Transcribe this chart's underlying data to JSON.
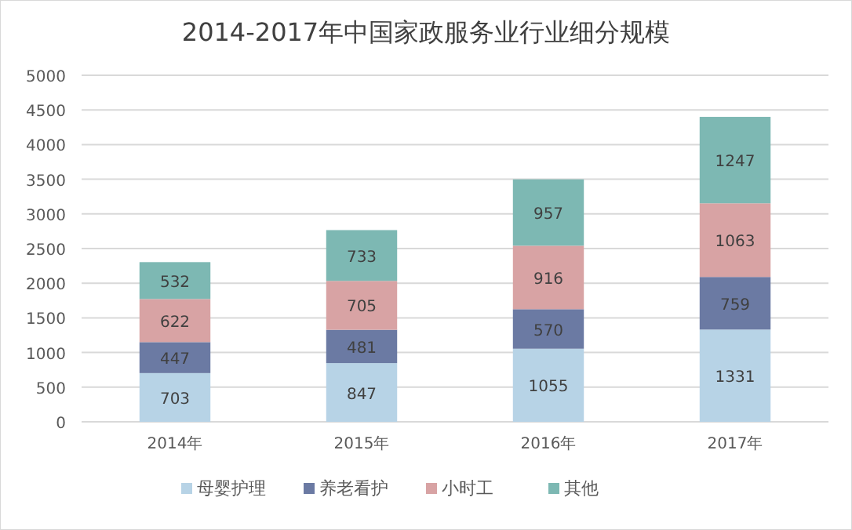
{
  "chart_data": {
    "type": "bar",
    "title": "2014-2017年中国家政服务业行业细分规模",
    "categories": [
      "2014年",
      "2015年",
      "2016年",
      "2017年"
    ],
    "stacked": true,
    "data_labels": true,
    "grid": "y",
    "legend": "bottom",
    "ylim": [
      0,
      5000
    ],
    "yticks": [
      0,
      500,
      1000,
      1500,
      2000,
      2500,
      3000,
      3500,
      4000,
      4500,
      5000
    ],
    "series": [
      {
        "name": "母婴护理",
        "color": "#b7d3e6",
        "values": [
          703,
          847,
          1055,
          1331
        ]
      },
      {
        "name": "养老看护",
        "color": "#6b7aa3",
        "values": [
          447,
          481,
          570,
          759
        ]
      },
      {
        "name": "小时工",
        "color": "#d8a3a4",
        "values": [
          622,
          705,
          916,
          1063
        ]
      },
      {
        "name": "其他",
        "color": "#7db8b3",
        "values": [
          532,
          733,
          957,
          1247
        ]
      }
    ]
  }
}
